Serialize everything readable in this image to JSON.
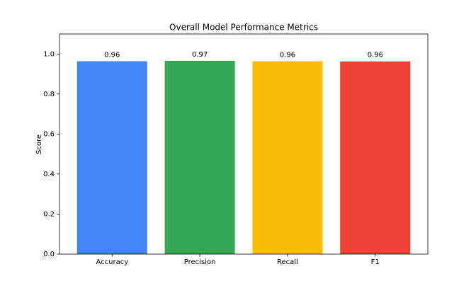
{
  "chart_data": {
    "type": "bar",
    "title": "Overall Model Performance Metrics",
    "ylabel": "Score",
    "categories": [
      "Accuracy",
      "Precision",
      "Recall",
      "F1"
    ],
    "values": [
      0.964,
      0.966,
      0.964,
      0.963
    ],
    "value_labels": [
      "0.96",
      "0.97",
      "0.96",
      "0.96"
    ],
    "colors": [
      "#4285f4",
      "#34a853",
      "#fbbc05",
      "#ea4335"
    ],
    "ylim": [
      0,
      1.1
    ],
    "yticks": [
      {
        "value": 0,
        "label": "0.0"
      },
      0.2,
      0.4,
      0.6,
      0.8,
      {
        "value": 1,
        "label": "1.0"
      }
    ],
    "grid": false
  }
}
